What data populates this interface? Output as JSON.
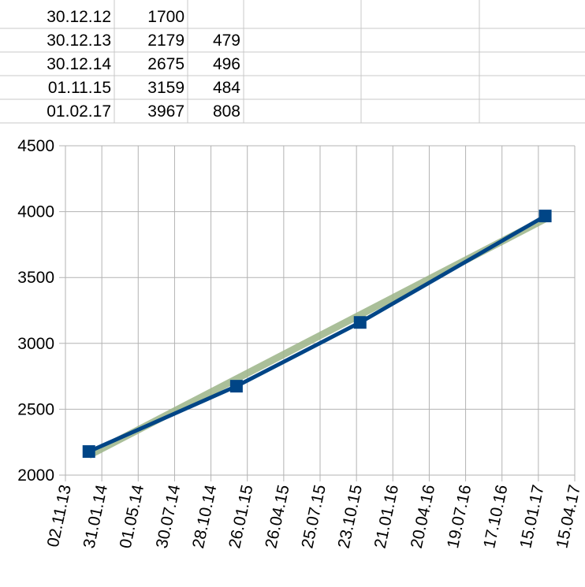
{
  "table": {
    "rows": [
      [
        "30.12.12",
        "1700",
        ""
      ],
      [
        "30.12.13",
        "2179",
        "479"
      ],
      [
        "30.12.14",
        "2675",
        "496"
      ],
      [
        "01.11.15",
        "3159",
        "484"
      ],
      [
        "01.02.17",
        "3967",
        "808"
      ]
    ]
  },
  "chart_data": {
    "type": "line",
    "x": [
      "30.12.13",
      "30.12.14",
      "01.11.15",
      "01.02.17"
    ],
    "series": [
      {
        "color": "#004586",
        "values": [
          2179,
          2675,
          3159,
          3967
        ],
        "marker": "square"
      },
      {
        "color": "#9bb487",
        "values": [
          2150,
          null,
          null,
          3945
        ],
        "trend": true
      }
    ],
    "xlim": [
      "02.11.13",
      "15.04.17"
    ],
    "xticks": [
      "02.11.13",
      "31.01.14",
      "01.05.14",
      "30.07.14",
      "28.10.14",
      "26.01.15",
      "26.04.15",
      "25.07.15",
      "23.10.15",
      "21.01.16",
      "20.04.16",
      "19.07.16",
      "17.10.16",
      "15.01.17",
      "15.04.17"
    ],
    "ylim": [
      2000,
      4500
    ],
    "yticks": [
      2000,
      2500,
      3000,
      3500,
      4000,
      4500
    ],
    "grid": true
  }
}
